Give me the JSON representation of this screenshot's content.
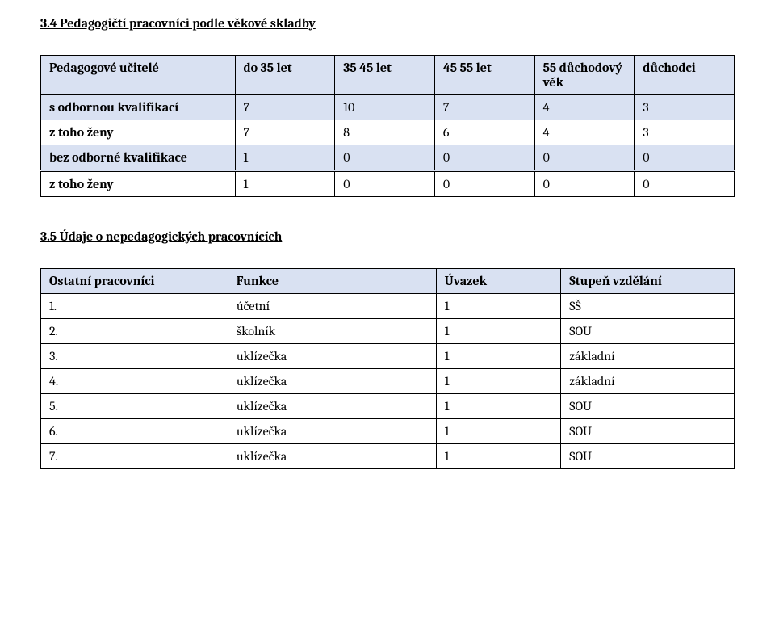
{
  "section1": {
    "heading": "3.4 Pedagogičtí pracovníci podle věkové skladby",
    "headers": {
      "rowLabel": "Pedagogové učitelé",
      "c1": "do 35 let",
      "c2": "35 45 let",
      "c3": "45 55 let",
      "c4": "55 důchodový věk",
      "c5": "důchodci"
    },
    "rows": [
      {
        "label": "s odbornou kvalifikací",
        "v": [
          "7",
          "10",
          "7",
          "4",
          "3"
        ],
        "blue": true
      },
      {
        "label": "z toho ženy",
        "v": [
          "7",
          "8",
          "6",
          "4",
          "3"
        ],
        "blue": false
      },
      {
        "label": "bez odborné kvalifikace",
        "v": [
          "1",
          "0",
          "0",
          "0",
          "0"
        ],
        "blue": true
      },
      {
        "label": "z toho ženy",
        "v": [
          "1",
          "0",
          "0",
          "0",
          "0"
        ],
        "blue": false,
        "doubleTop": true
      }
    ]
  },
  "section2": {
    "heading": "3.5 Údaje o nepedagogických pracovnících",
    "headers": {
      "c1": "Ostatní pracovníci",
      "c2": "Funkce",
      "c3": "Úvazek",
      "c4": "Stupeň vzdělání"
    },
    "rows": [
      {
        "n": "1.",
        "f": "účetní",
        "u": "1",
        "s": "SŠ"
      },
      {
        "n": "2.",
        "f": "školník",
        "u": "1",
        "s": "SOU"
      },
      {
        "n": "3.",
        "f": "uklízečka",
        "u": "1",
        "s": "základní"
      },
      {
        "n": "4.",
        "f": "uklízečka",
        "u": "1",
        "s": "základní"
      },
      {
        "n": "5.",
        "f": "uklízečka",
        "u": "1",
        "s": "SOU"
      },
      {
        "n": "6.",
        "f": "uklízečka",
        "u": "1",
        "s": "SOU"
      },
      {
        "n": "7.",
        "f": "uklízečka",
        "u": "1",
        "s": "SOU"
      }
    ]
  },
  "colors": {
    "header_bg": "#d9e1f2",
    "border": "#000000",
    "text": "#000000",
    "background": "#ffffff"
  }
}
